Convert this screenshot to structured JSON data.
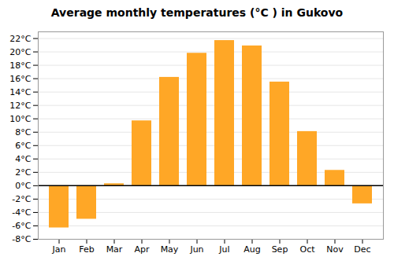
{
  "chart_data": {
    "type": "bar",
    "title": "Average monthly temperatures (°C ) in Gukovo",
    "categories": [
      "Jan",
      "Feb",
      "Mar",
      "Apr",
      "May",
      "Jun",
      "Jul",
      "Aug",
      "Sep",
      "Oct",
      "Nov",
      "Dec"
    ],
    "values": [
      -6.3,
      -5.0,
      0.3,
      9.7,
      16.2,
      19.8,
      21.7,
      20.9,
      15.5,
      8.1,
      2.3,
      -2.7
    ],
    "color": "#FFA726",
    "ylim": [
      -8,
      23
    ],
    "yticks": [
      {
        "value": -8,
        "label": "-8°C"
      },
      {
        "value": -6,
        "label": "-6°C"
      },
      {
        "value": -4,
        "label": "-4°C"
      },
      {
        "value": -2,
        "label": "-2°C"
      },
      {
        "value": 0,
        "label": "0°C"
      },
      {
        "value": 2,
        "label": "2°C"
      },
      {
        "value": 4,
        "label": "4°C"
      },
      {
        "value": 6,
        "label": "6°C"
      },
      {
        "value": 8,
        "label": "8°C"
      },
      {
        "value": 10,
        "label": "10°C"
      },
      {
        "value": 12,
        "label": "12°C"
      },
      {
        "value": 14,
        "label": "14°C"
      },
      {
        "value": 16,
        "label": "16°C"
      },
      {
        "value": 18,
        "label": "18°C"
      },
      {
        "value": 20,
        "label": "20°C"
      },
      {
        "value": 22,
        "label": "22°C"
      }
    ],
    "grid": true
  }
}
